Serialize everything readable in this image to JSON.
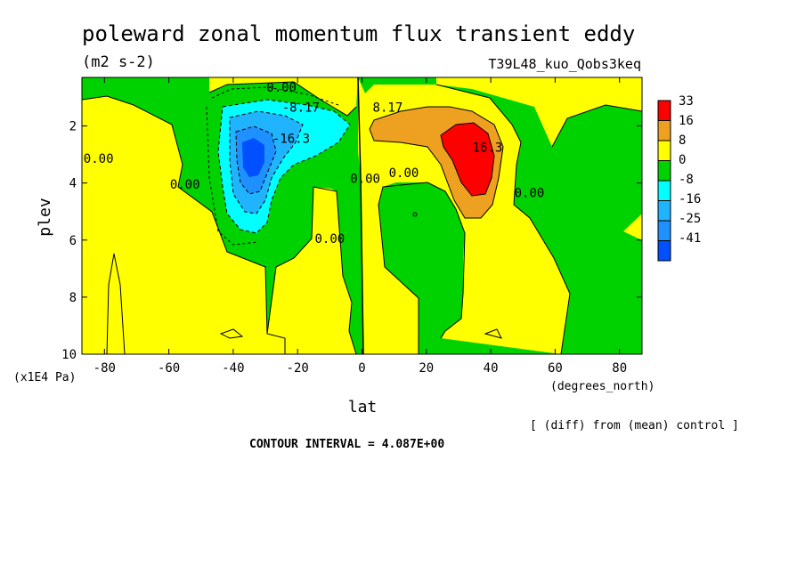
{
  "chart_data": {
    "type": "heatmap",
    "title": "poleward zonal momentum flux transient eddy",
    "subtitle": "(m2 s-2)",
    "experiment": "T39L48_kuo_Qobs3keq",
    "xlabel": "lat",
    "x_unit": "(degrees_north)",
    "ylabel": "plev",
    "y_unit": "(x1E4 Pa)",
    "xlim": [
      -87,
      87
    ],
    "ylim": [
      10,
      0.3
    ],
    "x_ticks": [
      -80,
      -60,
      -40,
      -20,
      0,
      20,
      40,
      60,
      80
    ],
    "y_ticks": [
      2,
      4,
      6,
      8,
      10
    ],
    "legend_levels": [
      "33",
      "16",
      "8",
      "0",
      "-8",
      "-16",
      "-25",
      "-41"
    ],
    "legend_colors": [
      "#ff0000",
      "#eea021",
      "#ffff00",
      "#00d200",
      "#00ffff",
      "#20b4ff",
      "#1e90ff",
      "#0050ff"
    ],
    "contour_labels": [
      {
        "text": "0.00",
        "lat": -25,
        "plev": 0.8
      },
      {
        "text": "-8.17",
        "lat": -19,
        "plev": 1.5
      },
      {
        "text": "-16.3",
        "lat": -22,
        "plev": 2.6
      },
      {
        "text": "-0.00",
        "lat": -83,
        "plev": 3.3
      },
      {
        "text": "0.00",
        "lat": -55,
        "plev": 4.2
      },
      {
        "text": "0.00",
        "lat": -10,
        "plev": 6.1
      },
      {
        "text": "0.00",
        "lat": 1,
        "plev": 4.0
      },
      {
        "text": "8.17",
        "lat": 8,
        "plev": 1.5
      },
      {
        "text": "0.00",
        "lat": 13,
        "plev": 3.8
      },
      {
        "text": "16.3",
        "lat": 39,
        "plev": 2.9
      },
      {
        "text": "0.00",
        "lat": 52,
        "plev": 4.5
      }
    ],
    "features": [
      {
        "kind": "min",
        "lat": -35,
        "plev": 3.0,
        "value": -41
      },
      {
        "kind": "max",
        "lat": 35,
        "plev": 2.8,
        "value": 33
      }
    ],
    "footer_note": "[ (diff) from (mean) control ]",
    "contour_interval_text": "CONTOUR INTERVAL = 4.087E+00"
  }
}
